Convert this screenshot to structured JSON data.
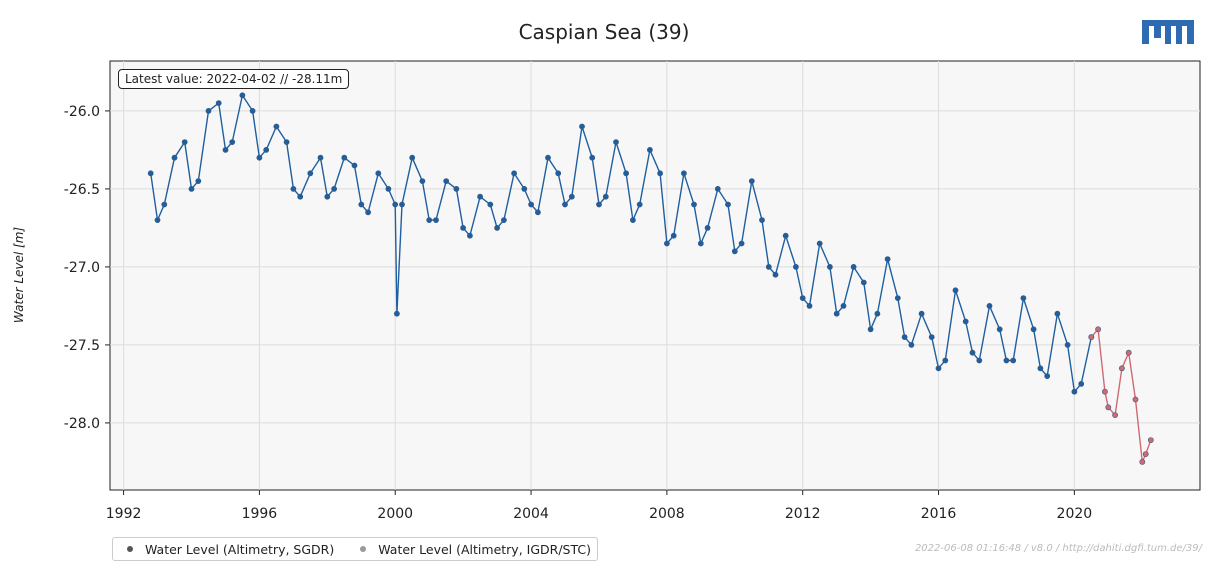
{
  "chart_data": {
    "type": "line",
    "title": "Caspian Sea (39)",
    "xlabel": "",
    "ylabel": "Water Level [m]",
    "xlim": [
      1991.6,
      2023.7
    ],
    "ylim": [
      -28.43,
      -25.68
    ],
    "x_ticks": [
      "1992",
      "1996",
      "2000",
      "2004",
      "2008",
      "2012",
      "2016",
      "2020"
    ],
    "y_ticks": [
      "-26.0",
      "-26.5",
      "-27.0",
      "-27.5",
      "-28.0"
    ],
    "grid": true,
    "legend_position": "bottom-left",
    "latest_value_label": "Latest value: 2022-04-02 // -28.11m",
    "series": [
      {
        "name": "Water Level (Altimetry, SGDR)",
        "color": "#1f5fa0",
        "x": [
          1992.8,
          1993.0,
          1993.2,
          1993.5,
          1993.8,
          1994.0,
          1994.2,
          1994.5,
          1994.8,
          1995.0,
          1995.2,
          1995.5,
          1995.8,
          1996.0,
          1996.2,
          1996.5,
          1996.8,
          1997.0,
          1997.2,
          1997.5,
          1997.8,
          1998.0,
          1998.2,
          1998.5,
          1998.8,
          1999.0,
          1999.2,
          1999.5,
          1999.8,
          2000.0,
          2000.05,
          2000.2,
          2000.5,
          2000.8,
          2001.0,
          2001.2,
          2001.5,
          2001.8,
          2002.0,
          2002.2,
          2002.5,
          2002.8,
          2003.0,
          2003.2,
          2003.5,
          2003.8,
          2004.0,
          2004.2,
          2004.5,
          2004.8,
          2005.0,
          2005.2,
          2005.5,
          2005.8,
          2006.0,
          2006.2,
          2006.5,
          2006.8,
          2007.0,
          2007.2,
          2007.5,
          2007.8,
          2008.0,
          2008.2,
          2008.5,
          2008.8,
          2009.0,
          2009.2,
          2009.5,
          2009.8,
          2010.0,
          2010.2,
          2010.5,
          2010.8,
          2011.0,
          2011.2,
          2011.5,
          2011.8,
          2012.0,
          2012.2,
          2012.5,
          2012.8,
          2013.0,
          2013.2,
          2013.5,
          2013.8,
          2014.0,
          2014.2,
          2014.5,
          2014.8,
          2015.0,
          2015.2,
          2015.5,
          2015.8,
          2016.0,
          2016.2,
          2016.5,
          2016.8,
          2017.0,
          2017.2,
          2017.5,
          2017.8,
          2018.0,
          2018.2,
          2018.5,
          2018.8,
          2019.0,
          2019.2,
          2019.5,
          2019.8,
          2020.0,
          2020.2,
          2020.5
        ],
        "y": [
          -26.4,
          -26.7,
          -26.6,
          -26.3,
          -26.2,
          -26.5,
          -26.45,
          -26.0,
          -25.95,
          -26.25,
          -26.2,
          -25.9,
          -26.0,
          -26.3,
          -26.25,
          -26.1,
          -26.2,
          -26.5,
          -26.55,
          -26.4,
          -26.3,
          -26.55,
          -26.5,
          -26.3,
          -26.35,
          -26.6,
          -26.65,
          -26.4,
          -26.5,
          -26.6,
          -27.3,
          -26.6,
          -26.3,
          -26.45,
          -26.7,
          -26.7,
          -26.45,
          -26.5,
          -26.75,
          -26.8,
          -26.55,
          -26.6,
          -26.75,
          -26.7,
          -26.4,
          -26.5,
          -26.6,
          -26.65,
          -26.3,
          -26.4,
          -26.6,
          -26.55,
          -26.1,
          -26.3,
          -26.6,
          -26.55,
          -26.2,
          -26.4,
          -26.7,
          -26.6,
          -26.25,
          -26.4,
          -26.85,
          -26.8,
          -26.4,
          -26.6,
          -26.85,
          -26.75,
          -26.5,
          -26.6,
          -26.9,
          -26.85,
          -26.45,
          -26.7,
          -27.0,
          -27.05,
          -26.8,
          -27.0,
          -27.2,
          -27.25,
          -26.85,
          -27.0,
          -27.3,
          -27.25,
          -27.0,
          -27.1,
          -27.4,
          -27.3,
          -26.95,
          -27.2,
          -27.45,
          -27.5,
          -27.3,
          -27.45,
          -27.65,
          -27.6,
          -27.15,
          -27.35,
          -27.55,
          -27.6,
          -27.25,
          -27.4,
          -27.6,
          -27.6,
          -27.2,
          -27.4,
          -27.65,
          -27.7,
          -27.3,
          -27.5,
          -27.8,
          -27.75,
          -27.45
        ]
      },
      {
        "name": "Water Level (Altimetry, IGDR/STC)",
        "color": "#d06a72",
        "x": [
          2020.5,
          2020.7,
          2020.9,
          2021.0,
          2021.2,
          2021.4,
          2021.6,
          2021.8,
          2022.0,
          2022.1,
          2022.25
        ],
        "y": [
          -27.45,
          -27.4,
          -27.8,
          -27.9,
          -27.95,
          -27.65,
          -27.55,
          -27.85,
          -28.25,
          -28.2,
          -28.11
        ]
      }
    ]
  },
  "footer_note": "2022-06-08 01:16:48 / v8.0 / http://dahiti.dgfi.tum.de/39/"
}
